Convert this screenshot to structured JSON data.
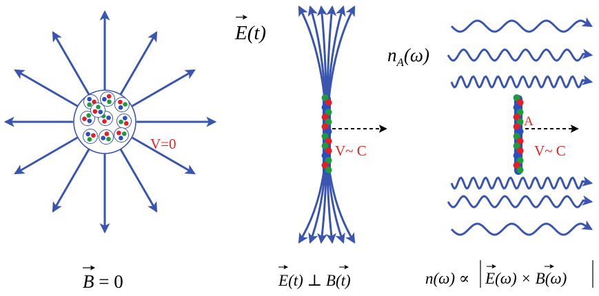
{
  "colors": {
    "arrow": "#3a55b0",
    "label_red": "#e8231f",
    "quark_red": "#e21f26",
    "quark_green": "#1f9a3c",
    "quark_blue": "#2a4fc0",
    "dashed": "#000000"
  },
  "panel_left": {
    "velocity_label": "V=0",
    "bottom_formula": {
      "symbol": "B",
      "rest": " = 0"
    }
  },
  "panel_middle": {
    "field_label": {
      "symbol": "E",
      "arg": "(t)"
    },
    "velocity_label": "V~ C",
    "bottom_formula": {
      "lhs_symbol": "E",
      "lhs_arg": "(t)",
      "perp": " ⊥ ",
      "rhs_symbol": "B",
      "rhs_arg": "(t)"
    }
  },
  "panel_right": {
    "photon_label": {
      "n": "n",
      "sub": "A",
      "arg": "(ω)"
    },
    "nucleus_label": "A",
    "velocity_label": "V~ C",
    "bottom_formula": {
      "lhs": "n(ω) ∝ ",
      "e_symbol": "E",
      "e_arg": "(ω) × ",
      "b_symbol": "B",
      "b_arg": "(ω)"
    }
  }
}
